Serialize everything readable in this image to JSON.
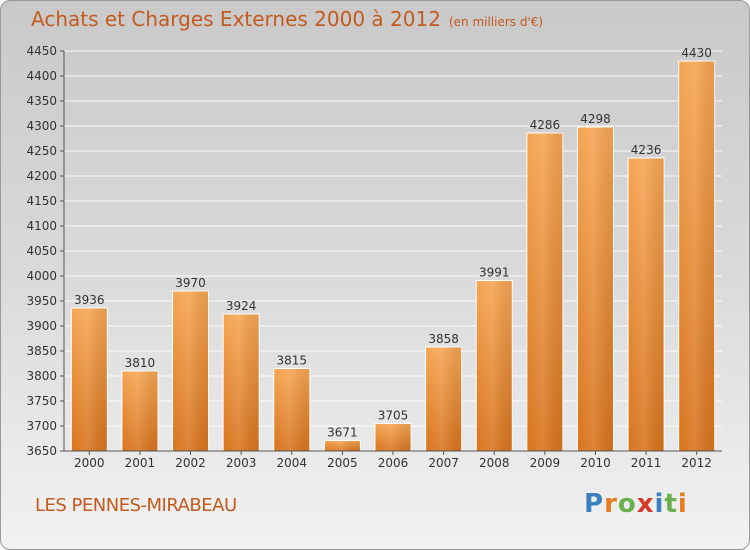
{
  "title": "Achats et Charges Externes 2000 à 2012",
  "subtitle": "(en milliers d'€)",
  "commune": "LES PENNES-MIRABEAU",
  "logo": {
    "text": "Proxiti",
    "letters": [
      "P",
      "r",
      "o",
      "x",
      "i",
      "t",
      "i"
    ],
    "colors": [
      "#3a7fc0",
      "#e87c1e",
      "#6ab04c",
      "#d63a2a",
      "#3a7fc0",
      "#6ab04c",
      "#e87c1e"
    ]
  },
  "colors": {
    "accent": "#c35a1e",
    "bar_top": "#f5a552",
    "bar_bottom": "#d8731c"
  },
  "chart_data": {
    "type": "bar",
    "categories": [
      "2000",
      "2001",
      "2002",
      "2003",
      "2004",
      "2005",
      "2006",
      "2007",
      "2008",
      "2009",
      "2010",
      "2011",
      "2012"
    ],
    "values": [
      3936,
      3810,
      3970,
      3924,
      3815,
      3671,
      3705,
      3858,
      3991,
      4286,
      4298,
      4236,
      4430
    ],
    "ylim": [
      3650,
      4450
    ],
    "yticks": [
      3650,
      3700,
      3750,
      3800,
      3850,
      3900,
      3950,
      4000,
      4050,
      4100,
      4150,
      4200,
      4250,
      4300,
      4350,
      4400,
      4450
    ],
    "grid": true,
    "legend": "none"
  }
}
